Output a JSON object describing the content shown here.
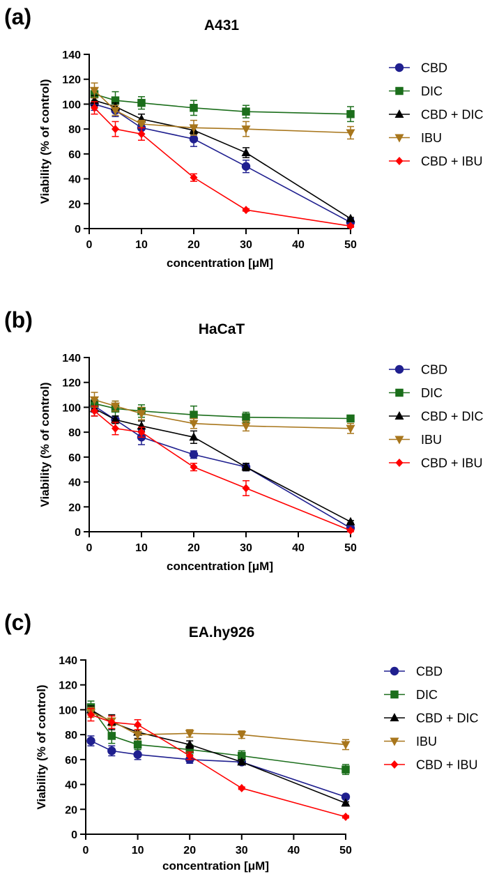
{
  "series_styles": [
    {
      "name": "CBD",
      "color": "#1f1f8f",
      "marker": "circle"
    },
    {
      "name": "DIC",
      "color": "#1b6e1b",
      "marker": "square"
    },
    {
      "name": "CBD + DIC",
      "color": "#000000",
      "marker": "triangle-up"
    },
    {
      "name": "IBU",
      "color": "#a8761c",
      "marker": "triangle-down"
    },
    {
      "name": "CBD + IBU",
      "color": "#ff0000",
      "marker": "diamond"
    }
  ],
  "chart_data": [
    {
      "panel_label": "(a)",
      "type": "line",
      "title": "A431",
      "xlabel": "concentration [μM]",
      "ylabel": "Viability (% of control)",
      "xlim": [
        0,
        50
      ],
      "ylim": [
        0,
        140
      ],
      "xticks": [
        0,
        10,
        20,
        30,
        40,
        50
      ],
      "yticks": [
        0,
        20,
        40,
        60,
        80,
        100,
        120,
        140
      ],
      "x": [
        1,
        5,
        10,
        20,
        30,
        50
      ],
      "legend_position": "right",
      "series": [
        {
          "name": "CBD",
          "values": [
            100,
            95,
            81,
            72,
            50,
            5
          ],
          "errors": [
            5,
            5,
            5,
            6,
            5,
            3
          ]
        },
        {
          "name": "DIC",
          "values": [
            108,
            103,
            101,
            97,
            94,
            92
          ],
          "errors": [
            5,
            7,
            5,
            6,
            5,
            6
          ]
        },
        {
          "name": "CBD + DIC",
          "values": [
            103,
            98,
            88,
            79,
            61,
            8
          ],
          "errors": [
            4,
            3,
            4,
            3,
            4,
            1
          ]
        },
        {
          "name": "IBU",
          "values": [
            111,
            95,
            84,
            81,
            80,
            77
          ],
          "errors": [
            6,
            4,
            3,
            6,
            6,
            5
          ]
        },
        {
          "name": "CBD + IBU",
          "values": [
            97,
            80,
            76,
            41,
            15,
            2
          ],
          "errors": [
            5,
            6,
            5,
            3,
            1,
            1
          ]
        }
      ]
    },
    {
      "panel_label": "(b)",
      "type": "line",
      "title": "HaCaT",
      "xlabel": "concentration [μM]",
      "ylabel": "Viability (% of control)",
      "xlim": [
        0,
        50
      ],
      "ylim": [
        0,
        140
      ],
      "xticks": [
        0,
        10,
        20,
        30,
        40,
        50
      ],
      "yticks": [
        0,
        20,
        40,
        60,
        80,
        100,
        120,
        140
      ],
      "x": [
        1,
        5,
        10,
        20,
        30,
        50
      ],
      "legend_position": "right",
      "series": [
        {
          "name": "CBD",
          "values": [
            101,
            90,
            76,
            62,
            52,
            3
          ],
          "errors": [
            5,
            3,
            6,
            3,
            3,
            1
          ]
        },
        {
          "name": "DIC",
          "values": [
            103,
            99,
            97,
            94,
            92,
            91
          ],
          "errors": [
            5,
            6,
            5,
            7,
            4,
            2
          ]
        },
        {
          "name": "CBD + DIC",
          "values": [
            99,
            90,
            85,
            76,
            52,
            8
          ],
          "errors": [
            6,
            3,
            4,
            5,
            3,
            1
          ]
        },
        {
          "name": "IBU",
          "values": [
            106,
            101,
            95,
            87,
            85,
            83
          ],
          "errors": [
            6,
            4,
            5,
            4,
            4,
            4
          ]
        },
        {
          "name": "CBD + IBU",
          "values": [
            97,
            83,
            80,
            52,
            35,
            1
          ],
          "errors": [
            4,
            5,
            4,
            3,
            6,
            1
          ]
        }
      ]
    },
    {
      "panel_label": "(c)",
      "type": "line",
      "title": "EA.hy926",
      "xlabel": "concentration [μM]",
      "ylabel": "Viability (% of control)",
      "xlim": [
        0,
        50
      ],
      "ylim": [
        0,
        140
      ],
      "xticks": [
        0,
        10,
        20,
        30,
        40,
        50
      ],
      "yticks": [
        0,
        20,
        40,
        60,
        80,
        100,
        120,
        140
      ],
      "x": [
        1,
        5,
        10,
        20,
        30,
        50
      ],
      "legend_position": "right",
      "series": [
        {
          "name": "CBD",
          "values": [
            75,
            67,
            64,
            60,
            58,
            30
          ],
          "errors": [
            4,
            4,
            4,
            3,
            2,
            1
          ]
        },
        {
          "name": "DIC",
          "values": [
            102,
            79,
            72,
            68,
            63,
            52
          ],
          "errors": [
            5,
            6,
            4,
            4,
            4,
            4
          ]
        },
        {
          "name": "CBD + DIC",
          "values": [
            100,
            90,
            82,
            72,
            58,
            25
          ],
          "errors": [
            3,
            6,
            5,
            3,
            2,
            1
          ]
        },
        {
          "name": "IBU",
          "values": [
            98,
            91,
            80,
            81,
            80,
            72
          ],
          "errors": [
            4,
            4,
            4,
            3,
            3,
            4
          ]
        },
        {
          "name": "CBD + IBU",
          "values": [
            96,
            90,
            88,
            63,
            37,
            14
          ],
          "errors": [
            5,
            5,
            4,
            3,
            1,
            1
          ]
        }
      ]
    }
  ]
}
